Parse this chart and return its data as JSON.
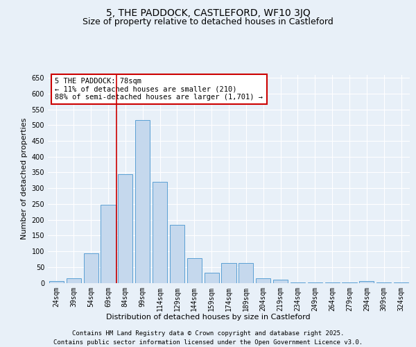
{
  "title": "5, THE PADDOCK, CASTLEFORD, WF10 3JQ",
  "subtitle": "Size of property relative to detached houses in Castleford",
  "xlabel": "Distribution of detached houses by size in Castleford",
  "ylabel": "Number of detached properties",
  "categories": [
    "24sqm",
    "39sqm",
    "54sqm",
    "69sqm",
    "84sqm",
    "99sqm",
    "114sqm",
    "129sqm",
    "144sqm",
    "159sqm",
    "174sqm",
    "189sqm",
    "204sqm",
    "219sqm",
    "234sqm",
    "249sqm",
    "264sqm",
    "279sqm",
    "294sqm",
    "309sqm",
    "324sqm"
  ],
  "values": [
    5,
    15,
    93,
    248,
    345,
    515,
    320,
    183,
    78,
    33,
    63,
    63,
    15,
    10,
    2,
    2,
    2,
    2,
    5,
    2,
    2
  ],
  "bar_color": "#c5d8ed",
  "bar_edge_color": "#5a9fd4",
  "red_line_x": 3.5,
  "annotation_line1": "5 THE PADDOCK: 78sqm",
  "annotation_line2": "← 11% of detached houses are smaller (210)",
  "annotation_line3": "88% of semi-detached houses are larger (1,701) →",
  "annotation_box_color": "#ffffff",
  "annotation_edge_color": "#cc0000",
  "ylim": [
    0,
    660
  ],
  "yticks": [
    0,
    50,
    100,
    150,
    200,
    250,
    300,
    350,
    400,
    450,
    500,
    550,
    600,
    650
  ],
  "footer_line1": "Contains HM Land Registry data © Crown copyright and database right 2025.",
  "footer_line2": "Contains public sector information licensed under the Open Government Licence v3.0.",
  "bg_color": "#e8f0f8",
  "plot_bg_color": "#e8f0f8",
  "title_fontsize": 10,
  "subtitle_fontsize": 9,
  "axis_label_fontsize": 8,
  "tick_fontsize": 7,
  "annotation_fontsize": 7.5,
  "footer_fontsize": 6.5
}
